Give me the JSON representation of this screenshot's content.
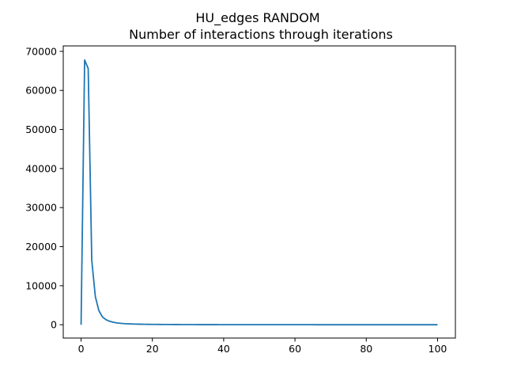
{
  "chart_data": {
    "type": "line",
    "title": "HU_edges RANDOM",
    "subtitle": "Number of interactions through iterations",
    "xlabel": "",
    "ylabel": "",
    "xlim": [
      -5,
      105
    ],
    "ylim": [
      -3400,
      71400
    ],
    "xticks": [
      0,
      20,
      40,
      60,
      80,
      100
    ],
    "yticks": [
      0,
      10000,
      20000,
      30000,
      40000,
      50000,
      60000,
      70000
    ],
    "grid": false,
    "legend": "none",
    "series": [
      {
        "color": "#1f77b4",
        "x": [
          0,
          1,
          2,
          3,
          4,
          5,
          6,
          7,
          8,
          9,
          10,
          11,
          12,
          13,
          14,
          15,
          16,
          17,
          18,
          19,
          20,
          21,
          22,
          23,
          24,
          25,
          26,
          27,
          28,
          29,
          30,
          31,
          32,
          33,
          34,
          35,
          36,
          37,
          38,
          39,
          40,
          41,
          42,
          43,
          44,
          45,
          46,
          47,
          48,
          49,
          50,
          51,
          52,
          53,
          54,
          55,
          56,
          57,
          58,
          59,
          60,
          61,
          62,
          63,
          64,
          65,
          66,
          67,
          68,
          69,
          70,
          71,
          72,
          73,
          74,
          75,
          76,
          77,
          78,
          79,
          80,
          81,
          82,
          83,
          84,
          85,
          86,
          87,
          88,
          89,
          90,
          91,
          92,
          93,
          94,
          95,
          96,
          97,
          98,
          99,
          100
        ],
        "values": [
          0,
          67800,
          65600,
          16500,
          7200,
          3600,
          2000,
          1300,
          900,
          650,
          480,
          380,
          300,
          250,
          210,
          180,
          160,
          140,
          125,
          110,
          100,
          92,
          85,
          78,
          72,
          66,
          60,
          56,
          52,
          48,
          45,
          42,
          40,
          38,
          36,
          34,
          32,
          30,
          29,
          28,
          27,
          26,
          25,
          24,
          23,
          22,
          21,
          20,
          20,
          19,
          19,
          18,
          18,
          17,
          17,
          16,
          16,
          15,
          15,
          15,
          14,
          14,
          14,
          13,
          13,
          13,
          12,
          12,
          12,
          12,
          11,
          11,
          11,
          11,
          10,
          10,
          10,
          10,
          10,
          9,
          9,
          9,
          9,
          9,
          9,
          8,
          8,
          8,
          8,
          8,
          8,
          8,
          7,
          7,
          7,
          7,
          7,
          7,
          7,
          7,
          7
        ]
      }
    ]
  }
}
